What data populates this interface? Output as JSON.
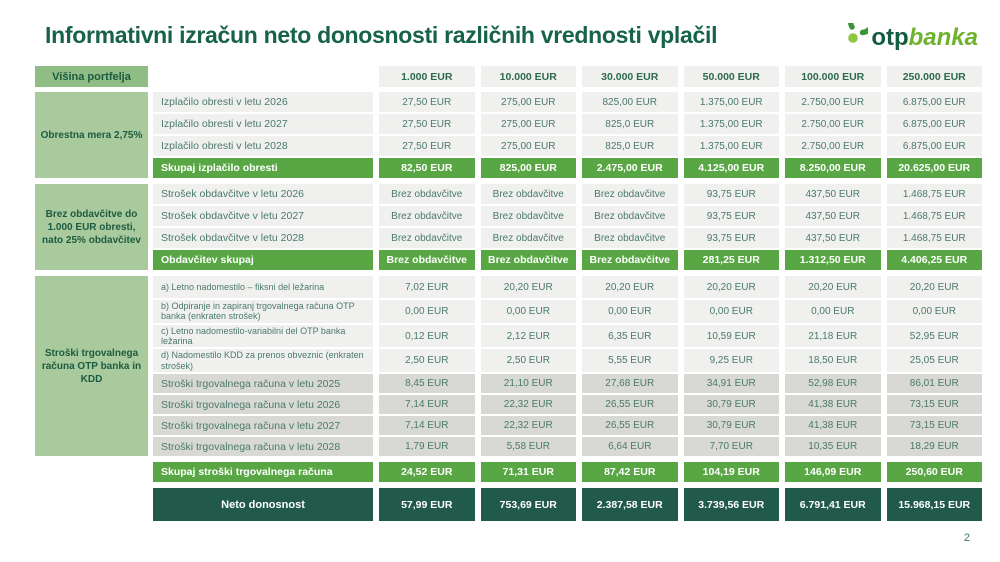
{
  "page": {
    "title": "Informativni izračun neto donosnosti različnih vrednosti vplačil",
    "page_number": "2"
  },
  "logo": {
    "otp": "otp",
    "banka": "banka"
  },
  "table": {
    "corner_label": "Višina portfelja",
    "columns": [
      "1.000 EUR",
      "10.000 EUR",
      "30.000 EUR",
      "50.000 EUR",
      "100.000 EUR",
      "250.000 EUR"
    ],
    "sections": [
      {
        "label": "Obrestna mera 2,75%",
        "rows": [
          {
            "label": "Izplačilo obresti v letu 2026",
            "style": "light",
            "values": [
              "27,50 EUR",
              "275,00 EUR",
              "825,00 EUR",
              "1.375,00 EUR",
              "2.750,00 EUR",
              "6.875,00 EUR"
            ]
          },
          {
            "label": "Izplačilo obresti v letu 2027",
            "style": "light",
            "values": [
              "27,50 EUR",
              "275,00 EUR",
              "825,0 EUR",
              "1.375,00 EUR",
              "2.750,00 EUR",
              "6.875,00 EUR"
            ]
          },
          {
            "label": "Izplačilo obresti v letu 2028",
            "style": "light",
            "values": [
              "27,50 EUR",
              "275,00 EUR",
              "825,0 EUR",
              "1.375,00 EUR",
              "2.750,00 EUR",
              "6.875,00 EUR"
            ]
          },
          {
            "label": "Skupaj izplačilo obresti",
            "style": "total",
            "values": [
              "82,50 EUR",
              "825,00 EUR",
              "2.475,00 EUR",
              "4.125,00 EUR",
              "8.250,00 EUR",
              "20.625,00 EUR"
            ]
          }
        ]
      },
      {
        "label": "Brez obdavčitve do 1.000 EUR obresti, nato 25% obdavčitev",
        "rows": [
          {
            "label": "Strošek obdavčitve v letu 2026",
            "style": "light",
            "values": [
              "Brez obdavčitve",
              "Brez obdavčitve",
              "Brez obdavčitve",
              "93,75 EUR",
              "437,50 EUR",
              "1.468,75 EUR"
            ]
          },
          {
            "label": "Strošek obdavčitve v letu 2027",
            "style": "light",
            "values": [
              "Brez obdavčitve",
              "Brez obdavčitve",
              "Brez obdavčitve",
              "93,75 EUR",
              "437,50 EUR",
              "1.468,75 EUR"
            ]
          },
          {
            "label": "Strošek obdavčitve v letu 2028",
            "style": "light",
            "values": [
              "Brez obdavčitve",
              "Brez obdavčitve",
              "Brez obdavčitve",
              "93,75 EUR",
              "437,50 EUR",
              "1.468,75 EUR"
            ]
          },
          {
            "label": "Obdavčitev skupaj",
            "style": "total",
            "values": [
              "Brez obdavčitve",
              "Brez obdavčitve",
              "Brez obdavčitve",
              "281,25 EUR",
              "1.312,50 EUR",
              "4.406,25 EUR"
            ]
          }
        ]
      },
      {
        "label": "Stroški trgovalnega računa OTP banka in KDD",
        "rows": [
          {
            "label": "a) Letno nadomestilo – fiksni del ležarina",
            "style": "light small",
            "values": [
              "7,02 EUR",
              "20,20 EUR",
              "20,20 EUR",
              "20,20 EUR",
              "20,20 EUR",
              "20,20 EUR"
            ]
          },
          {
            "label": "b) Odpiranje in  zapiranj trgovalnega računa OTP banka (enkraten strošek)",
            "style": "light small",
            "values": [
              "0,00 EUR",
              "0,00 EUR",
              "0,00 EUR",
              "0,00 EUR",
              "0,00 EUR",
              "0,00 EUR"
            ]
          },
          {
            "label": "c) Letno nadomestilo-variabilni del OTP banka ležarina",
            "style": "light small",
            "values": [
              "0,12 EUR",
              "2,12 EUR",
              "6,35 EUR",
              "10,59 EUR",
              "21,18 EUR",
              "52,95 EUR"
            ]
          },
          {
            "label": "d) Nadomestilo KDD za prenos obveznic (enkraten strošek)",
            "style": "light small",
            "values": [
              "2,50 EUR",
              "2,50 EUR",
              "5,55 EUR",
              "9,25 EUR",
              "18,50 EUR",
              "25,05 EUR"
            ]
          },
          {
            "label": "Stroški trgovalnega računa v letu 2025",
            "style": "dark",
            "values": [
              "8,45 EUR",
              "21,10 EUR",
              "27,68 EUR",
              "34,91 EUR",
              "52,98 EUR",
              "86,01 EUR"
            ]
          },
          {
            "label": "Stroški trgovalnega računa v letu 2026",
            "style": "dark",
            "values": [
              "7,14 EUR",
              "22,32 EUR",
              "26,55 EUR",
              "30,79 EUR",
              "41,38 EUR",
              "73,15 EUR"
            ]
          },
          {
            "label": "Stroški trgovalnega računa v letu 2027",
            "style": "dark",
            "values": [
              "7,14 EUR",
              "22,32 EUR",
              "26,55 EUR",
              "30,79 EUR",
              "41,38 EUR",
              "73,15 EUR"
            ]
          },
          {
            "label": "Stroški trgovalnega računa v letu 2028",
            "style": "dark",
            "values": [
              "1,79 EUR",
              "5,58 EUR",
              "6,64 EUR",
              "7,70 EUR",
              "10,35 EUR",
              "18,29 EUR"
            ]
          }
        ]
      }
    ],
    "grand_total_row": {
      "label": "Skupaj stroški trgovalnega računa",
      "style": "total",
      "values": [
        "24,52 EUR",
        "71,31 EUR",
        "87,42 EUR",
        "104,19 EUR",
        "146,09 EUR",
        "250,60 EUR"
      ]
    },
    "net_row": {
      "label": "Neto donosnost",
      "style": "net",
      "values": [
        "57,99 EUR",
        "753,69 EUR",
        "2.387,58 EUR",
        "3.739,56 EUR",
        "6.791,41 EUR",
        "15.968,15 EUR"
      ]
    }
  }
}
